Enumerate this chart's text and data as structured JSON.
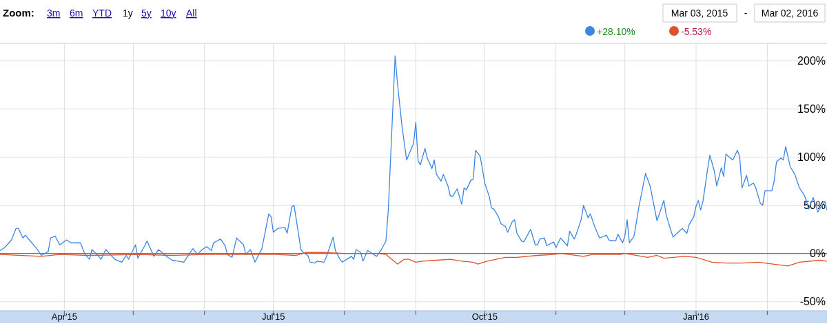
{
  "chart_data": {
    "type": "line",
    "xlim": [
      "2015-03-04",
      "2016-02-27"
    ],
    "ylim": [
      -58,
      218
    ],
    "xticks": [
      {
        "value": "2015-04-01",
        "label": "Apr'15"
      },
      {
        "value": "2015-05-01",
        "label": null
      },
      {
        "value": "2015-06-01",
        "label": null
      },
      {
        "value": "2015-07-01",
        "label": "Jul'15"
      },
      {
        "value": "2015-08-01",
        "label": null
      },
      {
        "value": "2015-09-01",
        "label": null
      },
      {
        "value": "2015-10-01",
        "label": "Oct'15"
      },
      {
        "value": "2015-11-01",
        "label": null
      },
      {
        "value": "2015-12-01",
        "label": null
      },
      {
        "value": "2016-01-01",
        "label": "Jan'16"
      },
      {
        "value": "2016-02-01",
        "label": null
      }
    ],
    "yticks": [
      {
        "value": -50,
        "label": "-50%"
      },
      {
        "value": 0,
        "label": "0%"
      },
      {
        "value": 50,
        "label": "50%"
      },
      {
        "value": 100,
        "label": "100%"
      },
      {
        "value": 150,
        "label": "150%"
      },
      {
        "value": 200,
        "label": "200%"
      }
    ],
    "grid": true,
    "marker": "none",
    "line_style": "solid",
    "ref_lines": [
      {
        "axis": "y",
        "value": 0,
        "color": "#8c6a60"
      }
    ],
    "annotations": [
      "Zoom:",
      "3m",
      "6m",
      "YTD",
      "1y",
      "5y",
      "10y",
      "All",
      "Mar 03, 2015",
      "-",
      "Mar 02, 2016",
      "+28.10%",
      "-5.53%"
    ],
    "series": [
      {
        "color": "#3d85e0",
        "x": [
          "2015-03-04",
          "2015-03-06",
          "2015-03-09",
          "2015-03-11",
          "2015-03-12",
          "2015-03-14",
          "2015-03-15",
          "2015-03-20",
          "2015-03-22",
          "2015-03-25",
          "2015-03-26",
          "2015-03-28",
          "2015-03-30",
          "2015-04-02",
          "2015-04-04",
          "2015-04-08",
          "2015-04-10",
          "2015-04-12",
          "2015-04-13",
          "2015-04-16",
          "2015-04-17",
          "2015-04-19",
          "2015-04-23",
          "2015-04-26",
          "2015-04-28",
          "2015-04-29",
          "2015-05-02",
          "2015-05-03",
          "2015-05-06",
          "2015-05-07",
          "2015-05-10",
          "2015-05-12",
          "2015-05-16",
          "2015-05-18",
          "2015-05-23",
          "2015-05-27",
          "2015-05-29",
          "2015-05-31",
          "2015-06-02",
          "2015-06-04",
          "2015-06-05",
          "2015-06-08",
          "2015-06-10",
          "2015-06-11",
          "2015-06-13",
          "2015-06-15",
          "2015-06-18",
          "2015-06-19",
          "2015-06-21",
          "2015-06-23",
          "2015-06-26",
          "2015-06-29",
          "2015-06-30",
          "2015-07-01",
          "2015-07-03",
          "2015-07-06",
          "2015-07-07",
          "2015-07-09",
          "2015-07-10",
          "2015-07-13",
          "2015-07-14",
          "2015-07-16",
          "2015-07-17",
          "2015-07-19",
          "2015-07-20",
          "2015-07-23",
          "2015-07-24",
          "2015-07-27",
          "2015-07-28",
          "2015-07-30",
          "2015-07-31",
          "2015-08-02",
          "2015-08-04",
          "2015-08-05",
          "2015-08-06",
          "2015-08-08",
          "2015-08-09",
          "2015-08-11",
          "2015-08-15",
          "2015-08-17",
          "2015-08-19",
          "2015-08-20",
          "2015-08-21",
          "2015-08-23",
          "2015-08-24",
          "2015-08-26",
          "2015-08-28",
          "2015-08-31",
          "2015-09-01",
          "2015-09-02",
          "2015-09-03",
          "2015-09-05",
          "2015-09-06",
          "2015-09-08",
          "2015-09-09",
          "2015-09-10",
          "2015-09-12",
          "2015-09-13",
          "2015-09-15",
          "2015-09-16",
          "2015-09-17",
          "2015-09-19",
          "2015-09-21",
          "2015-09-22",
          "2015-09-23",
          "2015-09-25",
          "2015-09-26",
          "2015-09-27",
          "2015-09-29",
          "2015-09-30",
          "2015-10-01",
          "2015-10-03",
          "2015-10-04",
          "2015-10-05",
          "2015-10-07",
          "2015-10-08",
          "2015-10-10",
          "2015-10-11",
          "2015-10-13",
          "2015-10-14",
          "2015-10-15",
          "2015-10-17",
          "2015-10-18",
          "2015-10-21",
          "2015-10-23",
          "2015-10-24",
          "2015-10-25",
          "2015-10-27",
          "2015-10-28",
          "2015-10-31",
          "2015-11-01",
          "2015-11-03",
          "2015-11-06",
          "2015-11-07",
          "2015-11-09",
          "2015-11-10",
          "2015-11-12",
          "2015-11-13",
          "2015-11-15",
          "2015-11-16",
          "2015-11-18",
          "2015-11-20",
          "2015-11-23",
          "2015-11-24",
          "2015-11-27",
          "2015-11-28",
          "2015-11-30",
          "2015-12-01",
          "2015-12-02",
          "2015-12-03",
          "2015-12-05",
          "2015-12-06",
          "2015-12-07",
          "2015-12-10",
          "2015-12-12",
          "2015-12-13",
          "2015-12-15",
          "2015-12-16",
          "2015-12-18",
          "2015-12-19",
          "2015-12-21",
          "2015-12-22",
          "2015-12-26",
          "2015-12-28",
          "2015-12-29",
          "2015-12-31",
          "2016-01-01",
          "2016-01-02",
          "2016-01-03",
          "2016-01-04",
          "2016-01-06",
          "2016-01-07",
          "2016-01-09",
          "2016-01-10",
          "2016-01-12",
          "2016-01-13",
          "2016-01-14",
          "2016-01-17",
          "2016-01-19",
          "2016-01-20",
          "2016-01-21",
          "2016-01-23",
          "2016-01-24",
          "2016-01-26",
          "2016-01-27",
          "2016-01-29",
          "2016-01-30",
          "2016-01-31",
          "2016-02-03",
          "2016-02-04",
          "2016-02-05",
          "2016-02-07",
          "2016-02-08",
          "2016-02-09",
          "2016-02-11",
          "2016-02-13",
          "2016-02-15",
          "2016-02-17",
          "2016-02-18",
          "2016-02-19",
          "2016-02-21",
          "2016-02-23",
          "2016-02-26",
          "2016-02-27"
        ],
        "values": [
          3,
          6,
          14,
          26,
          26,
          16,
          19,
          5,
          -2,
          2,
          16,
          18,
          9,
          14,
          11,
          11,
          -1,
          -6,
          4,
          -3,
          -6,
          4,
          -6,
          -9,
          -2,
          -6,
          9,
          -5,
          8,
          13,
          -3,
          4,
          -4,
          -7,
          -9,
          5,
          -1,
          4,
          7,
          3,
          11,
          15,
          8,
          -1,
          -4,
          16,
          9,
          -1,
          4,
          -9,
          5,
          41,
          38,
          22,
          26,
          27,
          21,
          48,
          50,
          4,
          1,
          -2,
          -9,
          -10,
          -8,
          -9,
          -4,
          17,
          3,
          -6,
          -9,
          -6,
          -3,
          -6,
          4,
          1,
          -8,
          3,
          -3,
          4,
          13,
          44,
          97,
          205,
          177,
          132,
          97,
          114,
          136,
          96,
          92,
          109,
          99,
          88,
          97,
          82,
          75,
          82,
          70,
          60,
          59,
          67,
          51,
          68,
          66,
          76,
          77,
          107,
          101,
          88,
          73,
          59,
          47,
          46,
          38,
          31,
          28,
          22,
          33,
          35,
          21,
          13,
          12,
          25,
          9,
          9,
          15,
          16,
          8,
          12,
          6,
          16,
          8,
          23,
          15,
          21,
          35,
          50,
          37,
          41,
          27,
          16,
          19,
          14,
          13,
          20,
          11,
          18,
          35,
          11,
          18,
          32,
          47,
          83,
          70,
          58,
          34,
          41,
          55,
          40,
          24,
          17,
          26,
          21,
          30,
          38,
          49,
          55,
          45,
          54,
          87,
          102,
          85,
          70,
          89,
          80,
          103,
          97,
          107,
          100,
          68,
          81,
          70,
          73,
          68,
          52,
          50,
          65,
          65,
          75,
          95,
          99,
          97,
          111,
          90,
          82,
          68,
          61,
          55,
          46,
          58,
          43,
          54,
          45
        ]
      },
      {
        "color": "#e0502a",
        "x": [
          "2015-03-04",
          "2015-03-22",
          "2015-03-30",
          "2015-04-12",
          "2015-05-03",
          "2015-05-18",
          "2015-06-02",
          "2015-07-02",
          "2015-07-11",
          "2015-07-15",
          "2015-07-22",
          "2015-08-01",
          "2015-08-15",
          "2015-08-19",
          "2015-08-23",
          "2015-08-24",
          "2015-08-27",
          "2015-08-29",
          "2015-09-01",
          "2015-09-04",
          "2015-09-10",
          "2015-09-16",
          "2015-09-21",
          "2015-09-26",
          "2015-09-28",
          "2015-10-02",
          "2015-10-06",
          "2015-10-10",
          "2015-10-15",
          "2015-10-24",
          "2015-10-31",
          "2015-11-03",
          "2015-11-13",
          "2015-11-17",
          "2015-11-29",
          "2015-12-01",
          "2015-12-11",
          "2015-12-15",
          "2015-12-18",
          "2015-12-27",
          "2016-01-01",
          "2016-01-08",
          "2016-01-14",
          "2016-01-21",
          "2016-01-28",
          "2016-02-10",
          "2016-02-15",
          "2016-02-24",
          "2016-02-27"
        ],
        "values": [
          -1,
          -3,
          -1,
          -2,
          -1,
          -2,
          -1,
          -1,
          -2,
          1,
          1,
          0,
          0,
          -1,
          -9,
          -11,
          -6,
          -6,
          -9,
          -8,
          -7,
          -6,
          -8,
          -9,
          -11,
          -8,
          -6,
          -4,
          -4,
          -2,
          -1,
          0,
          -3,
          -1,
          -1,
          0,
          -4,
          -2,
          -5,
          -3,
          -4,
          -9,
          -10,
          -10,
          -9,
          -13,
          -9,
          -7,
          -8
        ]
      }
    ]
  }
}
